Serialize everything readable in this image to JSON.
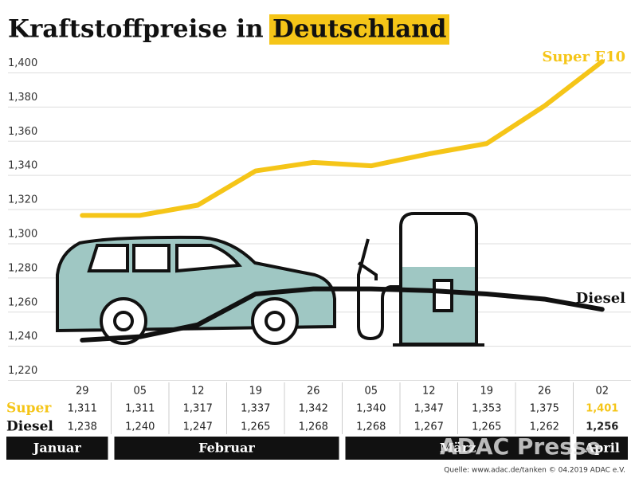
{
  "chart_data": {
    "type": "line",
    "title": "Kraftstoffpreise in",
    "title_highlight": "Deutschland",
    "categories": [
      "29",
      "05",
      "12",
      "19",
      "26",
      "05",
      "12",
      "19",
      "26",
      "02"
    ],
    "series": [
      {
        "name": "Super E10",
        "row_label": "Super",
        "color": "#f5c518",
        "values": [
          1.311,
          1.311,
          1.317,
          1.337,
          1.342,
          1.34,
          1.347,
          1.353,
          1.375,
          1.401
        ],
        "value_labels": [
          "1,311",
          "1,311",
          "1,317",
          "1,337",
          "1,342",
          "1,340",
          "1,347",
          "1,353",
          "1,375",
          "1,401"
        ]
      },
      {
        "name": "Diesel",
        "row_label": "Diesel",
        "color": "#111111",
        "values": [
          1.238,
          1.24,
          1.247,
          1.265,
          1.268,
          1.268,
          1.267,
          1.265,
          1.262,
          1.256
        ],
        "value_labels": [
          "1,238",
          "1,240",
          "1,247",
          "1,265",
          "1,268",
          "1,268",
          "1,267",
          "1,265",
          "1,262",
          "1,256"
        ]
      }
    ],
    "months": [
      "Januar",
      "Februar",
      "März",
      "April"
    ],
    "ylim": [
      1.21,
      1.41
    ],
    "yticks": [
      {
        "value": 1.22,
        "label": "1,220"
      },
      {
        "value": 1.24,
        "label": "1,240"
      },
      {
        "value": 1.26,
        "label": "1,260"
      },
      {
        "value": 1.28,
        "label": "1,280"
      },
      {
        "value": 1.3,
        "label": "1,300"
      },
      {
        "value": 1.32,
        "label": "1,320"
      },
      {
        "value": 1.34,
        "label": "1,340"
      },
      {
        "value": 1.36,
        "label": "1,360"
      },
      {
        "value": 1.38,
        "label": "1,380"
      },
      {
        "value": 1.4,
        "label": "1,400"
      }
    ],
    "grid": true,
    "watermark": "ADAC Presse",
    "source": "Quelle: www.adac.de/tanken   © 04.2019   ADAC e.V."
  }
}
